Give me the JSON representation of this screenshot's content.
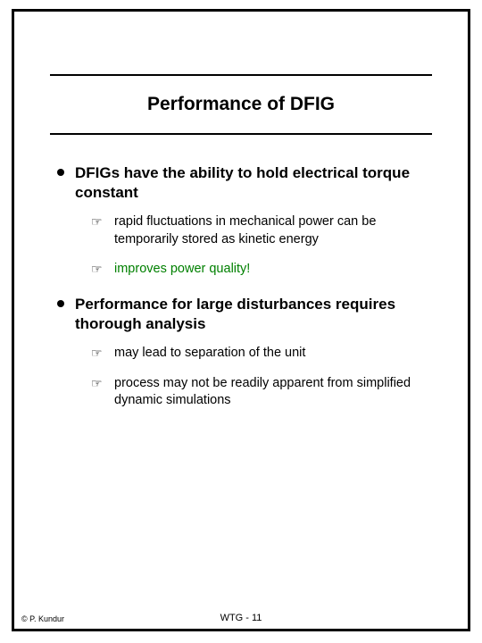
{
  "slide": {
    "title": "Performance of DFIG",
    "bullets": [
      {
        "text": "DFIGs have the ability to hold electrical torque constant",
        "subs": [
          {
            "text": "rapid fluctuations in mechanical power can be temporarily stored as kinetic energy",
            "highlight": false
          },
          {
            "text": "improves power quality!",
            "highlight": true
          }
        ]
      },
      {
        "text": "Performance for large disturbances requires thorough analysis",
        "subs": [
          {
            "text": "may lead to separation of the unit",
            "highlight": false
          },
          {
            "text": "process may not be readily apparent from simplified dynamic simulations",
            "highlight": false
          }
        ]
      }
    ]
  },
  "footer": {
    "copyright": "© P. Kundur",
    "page_label": "WTG -  11"
  },
  "style": {
    "highlight_color": "#008000",
    "text_color": "#000000",
    "border_color": "#000000",
    "background": "#ffffff"
  }
}
